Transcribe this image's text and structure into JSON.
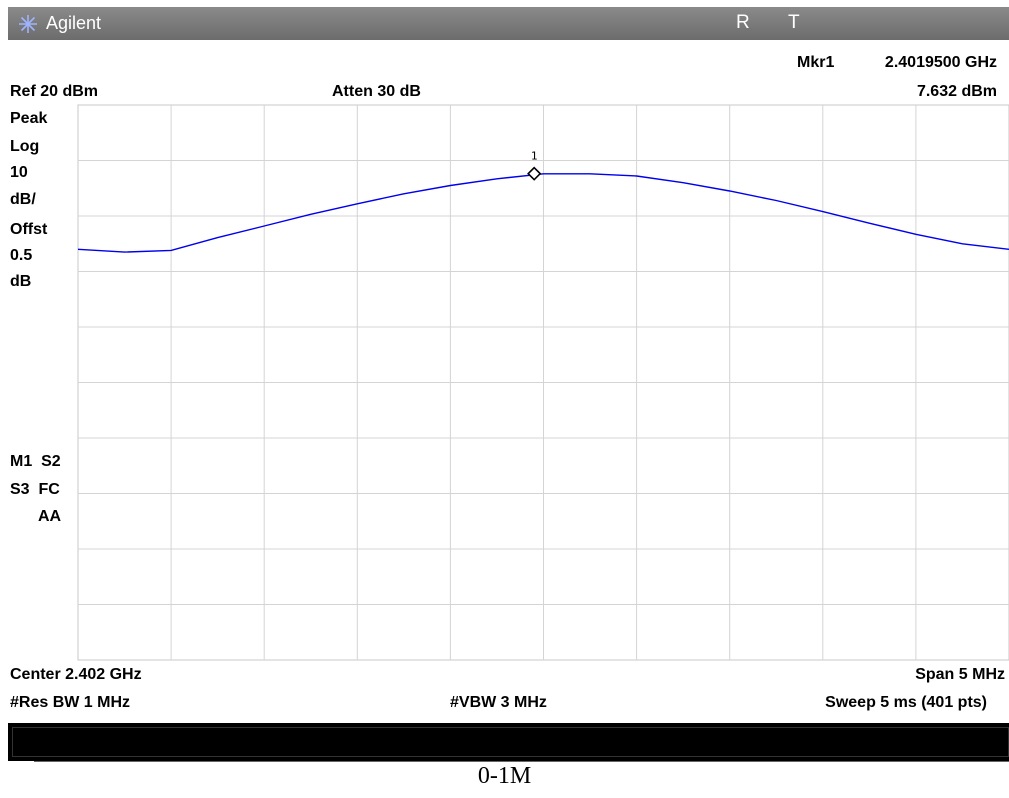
{
  "header": {
    "brand": "Agilent",
    "status_r": "R",
    "status_t": "T",
    "marker_name": "Mkr1",
    "marker_freq": "2.4019500 GHz",
    "marker_level": "7.632 dBm",
    "ref_level": "Ref 20 dBm",
    "atten": "Atten 30 dB"
  },
  "left_panel": {
    "lines": [
      "Peak",
      "Log",
      "10",
      "dB/",
      "Offst",
      "0.5",
      "dB"
    ],
    "mode_line1": "M1  S2",
    "mode_line2": "S3  FC",
    "mode_line3": "AA"
  },
  "footer": {
    "center": "Center 2.402 GHz",
    "span": "Span 5 MHz",
    "res_bw": "#Res BW 1 MHz",
    "vbw": "#VBW 3 MHz",
    "sweep": "Sweep 5 ms (401 pts)"
  },
  "caption": "0-1M",
  "chart_data": {
    "type": "line",
    "x": [
      2.3995,
      2.39975,
      2.4,
      2.40025,
      2.4005,
      2.40075,
      2.401,
      2.40125,
      2.4015,
      2.40175,
      2.402,
      2.40225,
      2.4025,
      2.40275,
      2.403,
      2.40325,
      2.4035,
      2.40375,
      2.404,
      2.40425,
      2.4045
    ],
    "series": [
      {
        "values": [
          -6.0,
          -6.5,
          -6.2,
          -3.9,
          -1.8,
          0.3,
          2.2,
          4.0,
          5.5,
          6.7,
          7.6,
          7.6,
          7.2,
          6.0,
          4.5,
          2.8,
          0.8,
          -1.3,
          -3.3,
          -5.0,
          -6.0
        ],
        "color": "#0000ee"
      }
    ],
    "xlim": [
      2.3995,
      2.4045
    ],
    "ylim": [
      -80,
      20
    ],
    "grid": true,
    "grid_divisions": [
      10,
      10
    ],
    "marker": {
      "label": "1",
      "x": 2.40195,
      "y": 7.632
    }
  }
}
